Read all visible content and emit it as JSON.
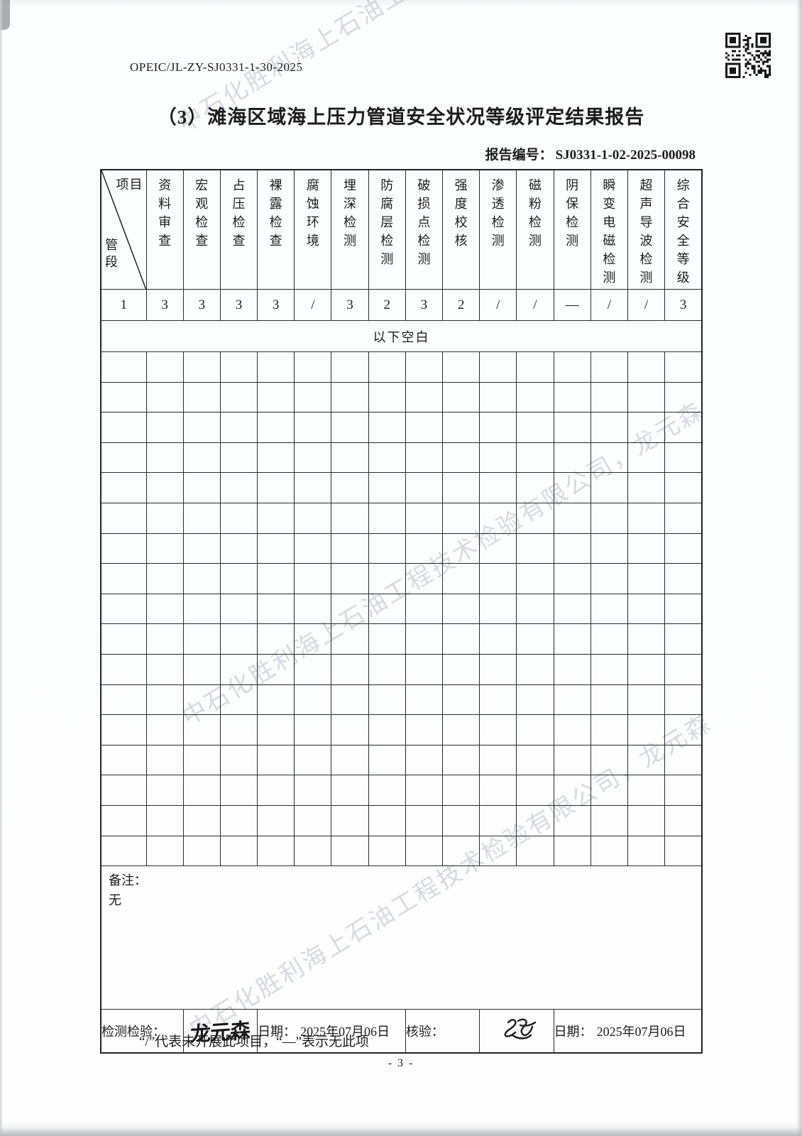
{
  "page": {
    "doc_code": "OPEIC/JL-ZY-SJ0331-1-30-2025",
    "title": "（3）滩海区域海上压力管道安全状况等级评定结果报告",
    "report_no_label": "报告编号：",
    "report_no": "SJ0331-1-02-2025-00098",
    "watermark_text": "中石化胜利海上石油工程技术检验有限公司，龙元森",
    "footnote": "“/”代表未开展此项目，“—”表示无此项",
    "page_number": "- 3 -"
  },
  "colors": {
    "ink": "#1c1c1c",
    "grid_line": "#2a2c2e",
    "watermark": "#7c8aa4"
  },
  "table": {
    "corner": {
      "top_label": "项目",
      "bottom_label": "管段"
    },
    "columns": [
      "资料审查",
      "宏观检查",
      "占压检查",
      "裸露检查",
      "腐蚀环境",
      "埋深检测",
      "防腐层检测",
      "破损点检测",
      "强度校核",
      "渗透检测",
      "磁粉检测",
      "阴保检测",
      "瞬变电磁检测",
      "超声导波检测",
      "综合安全等级"
    ],
    "rows": [
      {
        "segment": "1",
        "values": [
          "3",
          "3",
          "3",
          "3",
          "/",
          "3",
          "2",
          "3",
          "2",
          "/",
          "/",
          "—",
          "/",
          "/",
          "3"
        ]
      }
    ],
    "blank_note": "以下空白",
    "empty_row_count": 17,
    "remark": {
      "label": "备注：",
      "value": "无"
    }
  },
  "footer": {
    "inspect_label": "检测检验：",
    "inspect_signature": "龙元森",
    "date1_label": "日期：",
    "date1_value": "2025年07月06日",
    "verify_label": "核验：",
    "date2_label": "日期：",
    "date2_value": "2025年07月06日"
  }
}
